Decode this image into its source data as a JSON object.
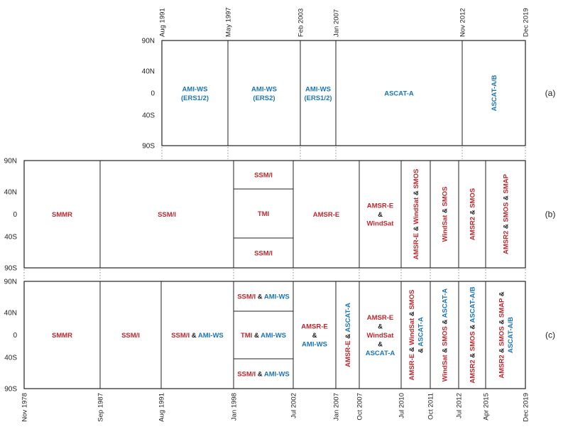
{
  "colors": {
    "passive": "#c0272d",
    "scatterometer": "#1b75bb",
    "line": "#222222"
  },
  "lat_labels": [
    "90N",
    "40N",
    "0",
    "40S",
    "90S"
  ],
  "panel_labels": [
    "(a)",
    "(b)",
    "(c)"
  ],
  "dates_top": [
    "Aug 1991",
    "May 1997",
    "Feb 2003",
    "Jan 2007",
    "Nov 2012",
    "Dec 2019"
  ],
  "dates_bottom": [
    "Nov 1978",
    "Sep 1987",
    "Aug 1991",
    "Jan 1998",
    "Jul 2002",
    "Jan 2007",
    "Oct 2007",
    "Jul 2010",
    "Oct 2011",
    "Jul 2012",
    "Apr 2015",
    "Dec 2019"
  ],
  "panel_a": [
    {
      "lines": [
        [
          [
            "AMI-WS",
            "s"
          ]
        ],
        [
          [
            "(ERS1/2)",
            "s"
          ]
        ]
      ]
    },
    {
      "lines": [
        [
          [
            "AMI-WS",
            "s"
          ]
        ],
        [
          [
            "(ERS2)",
            "s"
          ]
        ]
      ]
    },
    {
      "lines": [
        [
          [
            "AMI-WS",
            "s"
          ]
        ],
        [
          [
            "(ERS1/2)",
            "s"
          ]
        ]
      ]
    },
    {
      "lines": [
        [
          [
            "ASCAT-A",
            "s"
          ]
        ]
      ]
    },
    {
      "vertical": true,
      "lines": [
        [
          [
            "ASCAT-A/B",
            "s"
          ]
        ]
      ]
    }
  ],
  "panel_b": [
    {
      "lines": [
        [
          [
            "SMMR",
            "p"
          ]
        ]
      ]
    },
    {
      "lines": [
        [
          [
            "SSM/I",
            "p"
          ]
        ]
      ]
    },
    {
      "lines": [
        [
          [
            "SSM/I",
            "p"
          ]
        ]
      ],
      "band": "top"
    },
    {
      "lines": [
        [
          [
            "TMI",
            "p"
          ]
        ]
      ],
      "band": "mid"
    },
    {
      "lines": [
        [
          [
            "SSM/I",
            "p"
          ]
        ]
      ],
      "band": "bot"
    },
    {
      "lines": [
        [
          [
            "AMSR-E",
            "p"
          ]
        ]
      ]
    },
    {
      "lines": [
        [
          [
            "AMSR-E",
            "p"
          ]
        ],
        [
          [
            "&",
            "k"
          ]
        ],
        [
          [
            "WindSat",
            "p"
          ]
        ]
      ]
    },
    {
      "vertical": true,
      "lines": [
        [
          [
            "AMSR-E",
            "p"
          ],
          [
            " & ",
            "k"
          ],
          [
            "WindSat",
            "p"
          ],
          [
            " & ",
            "k"
          ],
          [
            "SMOS",
            "p"
          ]
        ]
      ]
    },
    {
      "vertical": true,
      "lines": [
        [
          [
            "WindSat",
            "p"
          ],
          [
            " & ",
            "k"
          ],
          [
            "SMOS",
            "p"
          ]
        ]
      ]
    },
    {
      "vertical": true,
      "lines": [
        [
          [
            "AMSR2",
            "p"
          ],
          [
            " & ",
            "k"
          ],
          [
            "SMOS",
            "p"
          ]
        ]
      ]
    },
    {
      "vertical": true,
      "lines": [
        [
          [
            "AMSR2",
            "p"
          ],
          [
            " & ",
            "k"
          ],
          [
            "SMOS",
            "p"
          ],
          [
            " & ",
            "k"
          ],
          [
            "SMAP",
            "p"
          ]
        ]
      ]
    }
  ],
  "panel_c": [
    {
      "lines": [
        [
          [
            "SMMR",
            "p"
          ]
        ]
      ]
    },
    {
      "lines": [
        [
          [
            "SSM/I",
            "p"
          ]
        ]
      ]
    },
    {
      "lines": [
        [
          [
            "SSM/I",
            "p"
          ],
          [
            " & ",
            "k"
          ],
          [
            "AMI-WS",
            "s"
          ]
        ]
      ]
    },
    {
      "lines": [
        [
          [
            "SSM/I",
            "p"
          ],
          [
            " & ",
            "k"
          ],
          [
            "AMI-WS",
            "s"
          ]
        ]
      ],
      "band": "top"
    },
    {
      "lines": [
        [
          [
            "TMI",
            "p"
          ],
          [
            " & ",
            "k"
          ],
          [
            "AMI-WS",
            "s"
          ]
        ]
      ],
      "band": "mid"
    },
    {
      "lines": [
        [
          [
            "SSM/I",
            "p"
          ],
          [
            " & ",
            "k"
          ],
          [
            "AMI-WS",
            "s"
          ]
        ]
      ],
      "band": "bot"
    },
    {
      "lines": [
        [
          [
            "AMSR-E",
            "p"
          ]
        ],
        [
          [
            "&",
            "k"
          ]
        ],
        [
          [
            "AMI-WS",
            "s"
          ]
        ]
      ]
    },
    {
      "vertical": true,
      "lines": [
        [
          [
            "AMSR-E",
            "p"
          ],
          [
            " & ",
            "k"
          ],
          [
            "ASCAT-A",
            "s"
          ]
        ]
      ]
    },
    {
      "lines": [
        [
          [
            "AMSR-E",
            "p"
          ]
        ],
        [
          [
            "&",
            "k"
          ]
        ],
        [
          [
            "WindSat",
            "p"
          ]
        ],
        [
          [
            "&",
            "k"
          ]
        ],
        [
          [
            "ASCAT-A",
            "s"
          ]
        ]
      ]
    },
    {
      "vertical": true,
      "lines": [
        [
          [
            "AMSR-E",
            "p"
          ],
          [
            " & ",
            "k"
          ],
          [
            "WindSat",
            "p"
          ],
          [
            " & ",
            "k"
          ],
          [
            "SMOS",
            "p"
          ]
        ],
        [
          [
            "& ",
            "k"
          ],
          [
            "ASCAT-A",
            "s"
          ]
        ]
      ]
    },
    {
      "vertical": true,
      "lines": [
        [
          [
            "WindSat",
            "p"
          ],
          [
            " & ",
            "k"
          ],
          [
            "SMOS",
            "p"
          ],
          [
            "  & ",
            "k"
          ],
          [
            "ASCAT-A",
            "s"
          ]
        ]
      ]
    },
    {
      "vertical": true,
      "lines": [
        [
          [
            "AMSR2",
            "p"
          ],
          [
            " & ",
            "k"
          ],
          [
            "SMOS",
            "p"
          ],
          [
            " & ",
            "k"
          ],
          [
            "ASCAT-A/B",
            "s"
          ]
        ]
      ]
    },
    {
      "vertical": true,
      "lines": [
        [
          [
            "AMSR2",
            "p"
          ],
          [
            " & ",
            "k"
          ],
          [
            "SMOS",
            "p"
          ],
          [
            " & ",
            "k"
          ],
          [
            "SMAP",
            "p"
          ],
          [
            " &",
            "k"
          ]
        ],
        [
          [
            "ASCAT-A/B",
            "s"
          ]
        ]
      ]
    }
  ]
}
